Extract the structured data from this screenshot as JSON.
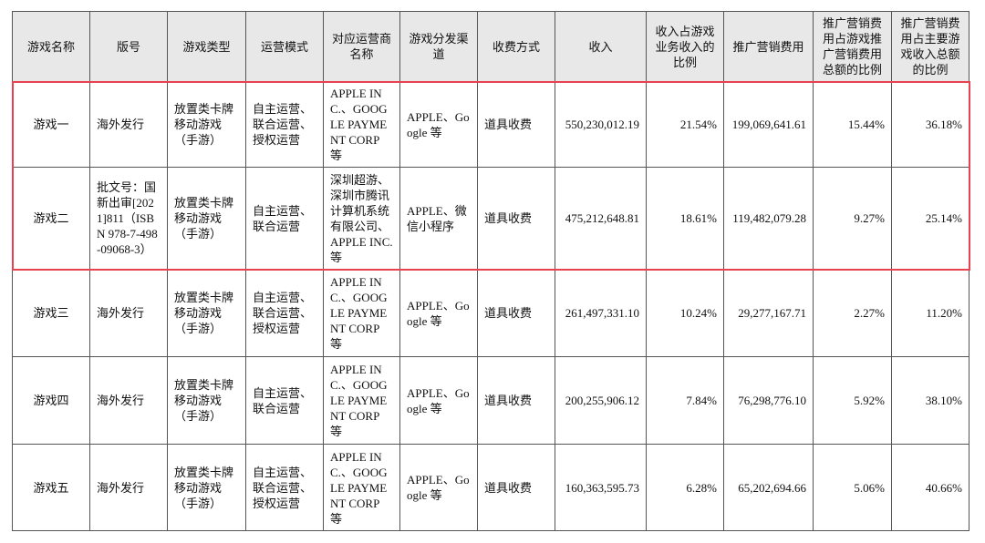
{
  "table": {
    "header": [
      "游戏名称",
      "版号",
      "游戏类型",
      "运营模式",
      "对应运营商名称",
      "游戏分发渠道",
      "收费方式",
      "收入",
      "收入占游戏业务收入的比例",
      "推广营销费用",
      "推广营销费用占游戏推广营销费用总额的比例",
      "推广营销费用占主要游戏收入总额的比例"
    ],
    "rows": [
      [
        "游戏一",
        "海外发行",
        "放置类卡牌移动游戏（手游）",
        "自主运营、联合运营、授权运营",
        "APPLE INC.、GOOGLE PAYMENT CORP 等",
        "APPLE、Google 等",
        "道具收费",
        "550,230,012.19",
        "21.54%",
        "199,069,641.61",
        "15.44%",
        "36.18%"
      ],
      [
        "游戏二",
        "批文号：国新出审[2021]811（ISBN 978-7-498-09068-3）",
        "放置类卡牌移动游戏（手游）",
        "自主运营、联合运营",
        "深圳超游、深圳市腾讯计算机系统有限公司、APPLE INC.等",
        "APPLE、微信小程序",
        "道具收费",
        "475,212,648.81",
        "18.61%",
        "119,482,079.28",
        "9.27%",
        "25.14%"
      ],
      [
        "游戏三",
        "海外发行",
        "放置类卡牌移动游戏（手游）",
        "自主运营、联合运营、授权运营",
        "APPLE INC.、GOOGLE PAYMENT CORP 等",
        "APPLE、Google 等",
        "道具收费",
        "261,497,331.10",
        "10.24%",
        "29,277,167.71",
        "2.27%",
        "11.20%"
      ],
      [
        "游戏四",
        "海外发行",
        "放置类卡牌移动游戏（手游）",
        "自主运营、联合运营",
        "APPLE INC.、GOOGLE PAYMENT CORP 等",
        "APPLE、Google 等",
        "道具收费",
        "200,255,906.12",
        "7.84%",
        "76,298,776.10",
        "5.92%",
        "38.10%"
      ],
      [
        "游戏五",
        "海外发行",
        "放置类卡牌移动游戏（手游）",
        "自主运营、联合运营、授权运营",
        "APPLE INC.、GOOGLE PAYMENT CORP 等",
        "APPLE、Google 等",
        "道具收费",
        "160,363,595.73",
        "6.28%",
        "65,202,694.66",
        "5.06%",
        "40.66%"
      ]
    ]
  }
}
